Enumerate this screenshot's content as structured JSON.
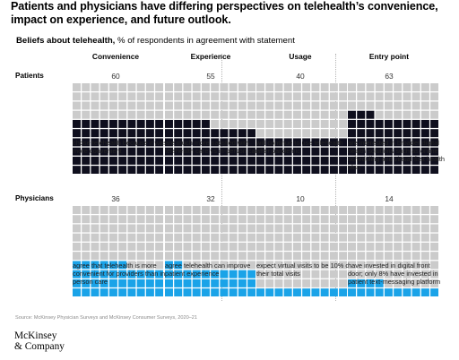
{
  "title": "Patients and physicians have differing perspectives on telehealth’s convenience, impact on experience, and future outlook.",
  "subtitle_bold": "Beliefs about telehealth,",
  "subtitle_rest": " % of respondents in agreement with statement",
  "source": "Source: McKinsey Physician Surveys and McKinsey Consumer Surveys, 2020–21",
  "logo_line1": "McKinsey",
  "logo_line2": "& Company",
  "colors": {
    "filled_patients": "#0f0f1e",
    "filled_physicians": "#1aa3e8",
    "empty": "#cbcbcb"
  },
  "chart_data": {
    "type": "waffle",
    "categories": [
      "Convenience",
      "Experience",
      "Usage",
      "Entry point"
    ],
    "series": [
      {
        "name": "Patients",
        "values": [
          60,
          55,
          40,
          63
        ],
        "labels": [
          "chose telehealth because it was more convenient",
          "are much more satisfied with telehealth care vs in-person care",
          "will continue to use telehealth after pandemic",
          "are interested in broader digital health solutions such as online scheduling and virtual-first health plan"
        ]
      },
      {
        "name": "Physicians",
        "values": [
          36,
          32,
          10,
          14
        ],
        "labels": [
          "agree that telehealth is more convenient for providers than in-person care",
          "agree telehealth can improve patient experience",
          "expect virtual visits to be 10% of their total visits",
          "have invested in digital front door; only 8% have invested in patient text-messaging platform"
        ]
      }
    ]
  }
}
